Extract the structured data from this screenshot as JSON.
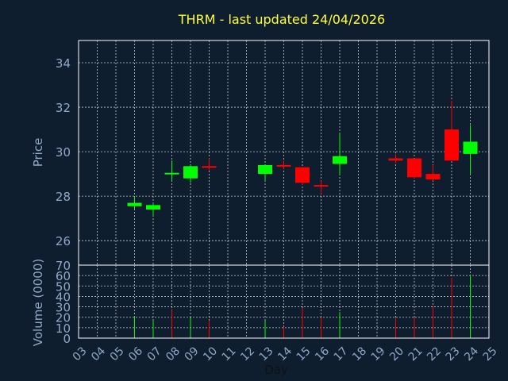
{
  "chart_data": [
    {
      "type": "candlestick",
      "title": "THRM - last updated 24/04/2026",
      "ylabel": "Price",
      "ylim": [
        24.9,
        35.0
      ],
      "yticks": [
        26,
        28,
        30,
        32,
        34
      ],
      "grid": true,
      "colors": {
        "up": "#00ff00",
        "down": "#ff0000",
        "background": "#0f1e2f",
        "text": "#8fa8c8",
        "title": "#ffff33"
      },
      "candles": [
        {
          "day": 6,
          "open": 27.55,
          "high": 28.0,
          "low": 27.4,
          "close": 27.7
        },
        {
          "day": 7,
          "open": 27.4,
          "high": 27.7,
          "low": 27.1,
          "close": 27.6
        },
        {
          "day": 8,
          "open": 29.05,
          "high": 29.6,
          "low": 28.7,
          "close": 29.05
        },
        {
          "day": 9,
          "open": 28.8,
          "high": 29.4,
          "low": 28.6,
          "close": 29.35
        },
        {
          "day": 10,
          "open": 29.35,
          "high": 29.7,
          "low": 29.15,
          "close": 29.3
        },
        {
          "day": 13,
          "open": 29.0,
          "high": 29.4,
          "low": 28.7,
          "close": 29.4
        },
        {
          "day": 14,
          "open": 29.4,
          "high": 29.6,
          "low": 29.2,
          "close": 29.35
        },
        {
          "day": 15,
          "open": 29.3,
          "high": 29.3,
          "low": 28.5,
          "close": 28.6
        },
        {
          "day": 16,
          "open": 28.5,
          "high": 28.7,
          "low": 28.1,
          "close": 28.45
        },
        {
          "day": 17,
          "open": 29.45,
          "high": 30.85,
          "low": 28.95,
          "close": 29.8
        },
        {
          "day": 20,
          "open": 29.7,
          "high": 29.9,
          "low": 29.5,
          "close": 29.6
        },
        {
          "day": 21,
          "open": 29.7,
          "high": 29.7,
          "low": 28.8,
          "close": 28.85
        },
        {
          "day": 22,
          "open": 29.0,
          "high": 29.4,
          "low": 28.7,
          "close": 28.75
        },
        {
          "day": 23,
          "open": 31.0,
          "high": 32.3,
          "low": 29.6,
          "close": 29.6
        },
        {
          "day": 24,
          "open": 29.9,
          "high": 31.2,
          "low": 29.0,
          "close": 30.45
        }
      ]
    },
    {
      "type": "bar",
      "xlabel": "Day",
      "ylabel": "Volume (0000)",
      "ylim": [
        0,
        70
      ],
      "yticks": [
        0,
        10,
        20,
        30,
        40,
        50,
        60,
        70
      ],
      "xlim": [
        3,
        25
      ],
      "xticks": [
        "03",
        "04",
        "05",
        "06",
        "07",
        "08",
        "09",
        "10",
        "11",
        "12",
        "13",
        "14",
        "15",
        "16",
        "17",
        "18",
        "19",
        "20",
        "21",
        "22",
        "23",
        "24",
        "25"
      ],
      "grid": true,
      "bars": [
        {
          "day": 6,
          "value": 21,
          "direction": "up"
        },
        {
          "day": 7,
          "value": 17,
          "direction": "up"
        },
        {
          "day": 8,
          "value": 27,
          "direction": "down"
        },
        {
          "day": 9,
          "value": 20,
          "direction": "up"
        },
        {
          "day": 10,
          "value": 17,
          "direction": "down"
        },
        {
          "day": 13,
          "value": 17,
          "direction": "up"
        },
        {
          "day": 14,
          "value": 11,
          "direction": "down"
        },
        {
          "day": 15,
          "value": 29,
          "direction": "down"
        },
        {
          "day": 16,
          "value": 20,
          "direction": "down"
        },
        {
          "day": 17,
          "value": 25,
          "direction": "up"
        },
        {
          "day": 20,
          "value": 19,
          "direction": "down"
        },
        {
          "day": 21,
          "value": 20,
          "direction": "down"
        },
        {
          "day": 22,
          "value": 31,
          "direction": "down"
        },
        {
          "day": 23,
          "value": 58,
          "direction": "down"
        },
        {
          "day": 24,
          "value": 61,
          "direction": "up"
        }
      ]
    }
  ]
}
